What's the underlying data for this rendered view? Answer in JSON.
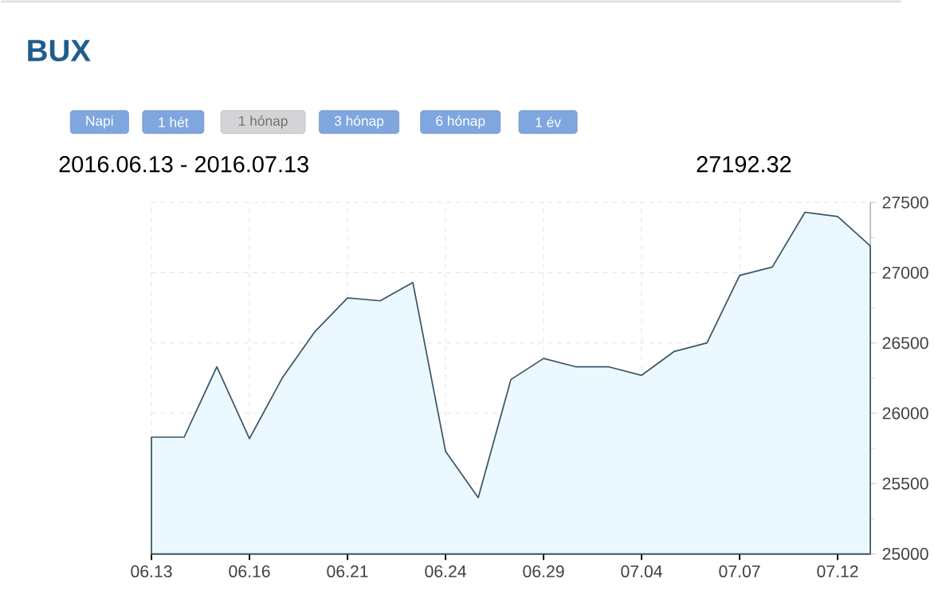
{
  "chart_data": {
    "type": "area",
    "title": "BUX",
    "subtitle": "2016.06.13 - 2016.07.13",
    "annotations": [
      "Napi",
      "1 hét",
      "1 hónap",
      "3 hónap",
      "6 hónap",
      "1 év",
      "27192.32"
    ],
    "categories": [
      "06.13",
      null,
      null,
      "06.16",
      null,
      null,
      "06.21",
      null,
      null,
      "06.24",
      null,
      null,
      "06.29",
      null,
      null,
      "07.04",
      null,
      null,
      "07.07",
      null,
      null,
      "07.12",
      null
    ],
    "values": [
      25830,
      25830,
      26330,
      25820,
      26250,
      26580,
      26820,
      26800,
      26930,
      25730,
      25400,
      26240,
      26390,
      26330,
      26330,
      26270,
      26440,
      26500,
      26980,
      27040,
      27430,
      27400,
      27190
    ],
    "color": "#3d5566",
    "ylim": [
      25000,
      27500
    ],
    "yticks": [
      25000,
      25500,
      26000,
      26500,
      27000,
      27500
    ],
    "grid": true
  }
}
